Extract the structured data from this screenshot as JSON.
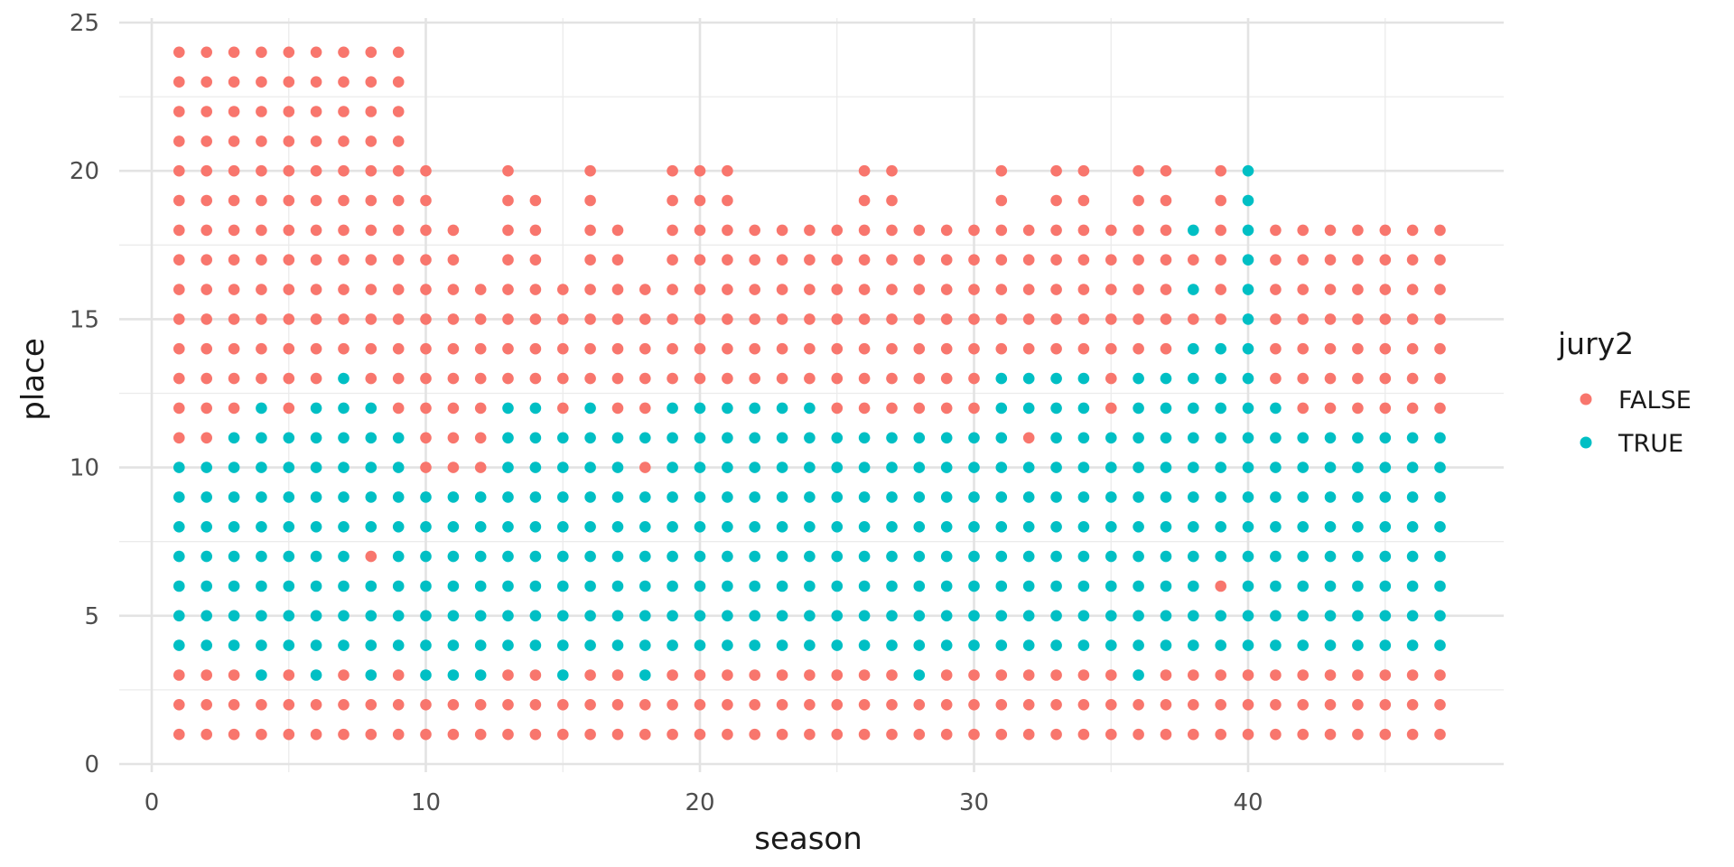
{
  "chart_data": {
    "type": "scatter",
    "title": "",
    "xlabel": "season",
    "ylabel": "place",
    "xlim": [
      0,
      47
    ],
    "ylim": [
      0,
      25
    ],
    "x_ticks": [
      "0",
      "10",
      "20",
      "30",
      "40"
    ],
    "y_ticks": [
      "0",
      "5",
      "10",
      "15",
      "20",
      "25"
    ],
    "grid": true,
    "legend": {
      "title": "jury2",
      "position": "right",
      "entries": [
        {
          "label": "FALSE",
          "color": "#F8766D"
        },
        {
          "label": "TRUE",
          "color": "#00BFC4"
        }
      ]
    },
    "colors": {
      "FALSE": "#F8766D",
      "TRUE": "#00BFC4"
    },
    "seasons_max_place": [
      24,
      24,
      24,
      24,
      24,
      24,
      24,
      24,
      24,
      20,
      18,
      16,
      20,
      19,
      16,
      20,
      18,
      16,
      20,
      20,
      20,
      18,
      18,
      18,
      18,
      20,
      20,
      18,
      18,
      18,
      20,
      18,
      20,
      20,
      18,
      20,
      20,
      18,
      20,
      20,
      18,
      18,
      18,
      18,
      18,
      18,
      18
    ],
    "true_ranges": [
      [
        [
          4,
          10
        ]
      ],
      [
        [
          4,
          10
        ]
      ],
      [
        [
          4,
          11
        ]
      ],
      [
        [
          3,
          12
        ]
      ],
      [
        [
          4,
          11
        ]
      ],
      [
        [
          3,
          12
        ]
      ],
      [
        [
          4,
          13
        ]
      ],
      [
        [
          3,
          6
        ],
        [
          8,
          12
        ]
      ],
      [
        [
          4,
          11
        ]
      ],
      [
        [
          3,
          9
        ]
      ],
      [
        [
          3,
          9
        ]
      ],
      [
        [
          3,
          9
        ]
      ],
      [
        [
          4,
          12
        ]
      ],
      [
        [
          4,
          12
        ]
      ],
      [
        [
          3,
          11
        ]
      ],
      [
        [
          4,
          12
        ]
      ],
      [
        [
          4,
          11
        ]
      ],
      [
        [
          3,
          9
        ],
        [
          11,
          11
        ]
      ],
      [
        [
          4,
          12
        ]
      ],
      [
        [
          4,
          12
        ]
      ],
      [
        [
          4,
          12
        ]
      ],
      [
        [
          4,
          12
        ]
      ],
      [
        [
          4,
          12
        ]
      ],
      [
        [
          4,
          12
        ]
      ],
      [
        [
          4,
          11
        ]
      ],
      [
        [
          4,
          11
        ]
      ],
      [
        [
          4,
          11
        ]
      ],
      [
        [
          3,
          11
        ]
      ],
      [
        [
          4,
          11
        ]
      ],
      [
        [
          4,
          11
        ]
      ],
      [
        [
          4,
          13
        ]
      ],
      [
        [
          4,
          10
        ],
        [
          12,
          13
        ]
      ],
      [
        [
          4,
          13
        ]
      ],
      [
        [
          4,
          13
        ]
      ],
      [
        [
          4,
          11
        ]
      ],
      [
        [
          3,
          13
        ]
      ],
      [
        [
          4,
          13
        ]
      ],
      [
        [
          4,
          14
        ],
        [
          16,
          16
        ],
        [
          18,
          18
        ]
      ],
      [
        [
          4,
          5
        ],
        [
          7,
          14
        ]
      ],
      [
        [
          4,
          20
        ]
      ],
      [
        [
          4,
          12
        ]
      ],
      [
        [
          4,
          11
        ]
      ],
      [
        [
          4,
          11
        ]
      ],
      [
        [
          4,
          11
        ]
      ],
      [
        [
          4,
          11
        ]
      ],
      [
        [
          4,
          11
        ]
      ],
      [
        [
          4,
          11
        ]
      ]
    ]
  }
}
